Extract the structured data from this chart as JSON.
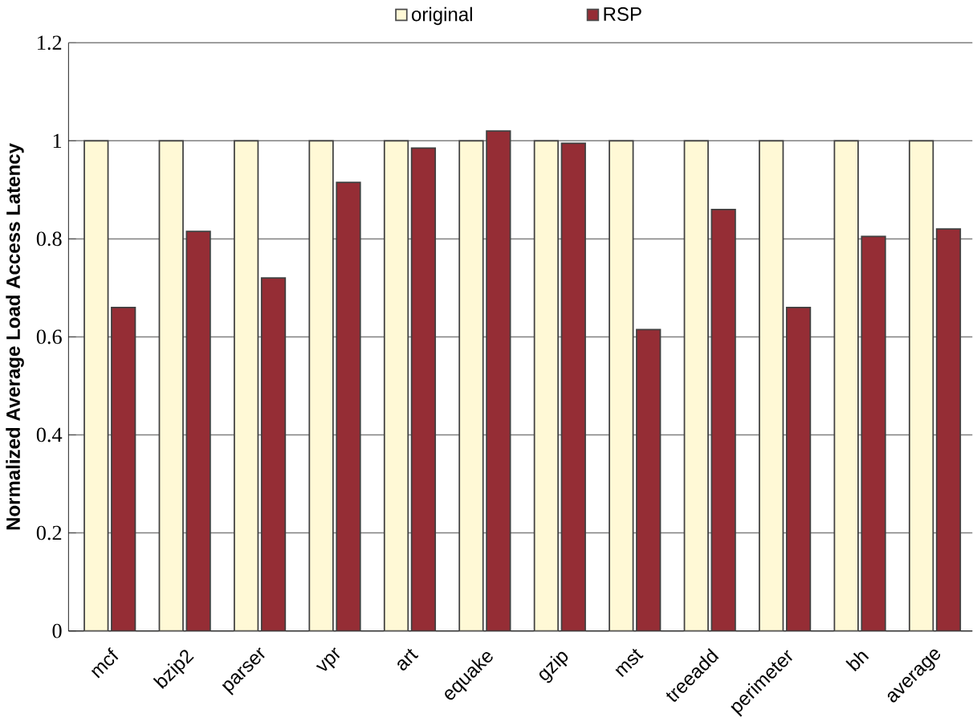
{
  "chart_data": {
    "type": "bar",
    "ylabel": "Normalized Average Load Access  Latency",
    "categories": [
      "mcf",
      "bzip2",
      "parser",
      "vpr",
      "art",
      "equake",
      "gzip",
      "mst",
      "treeadd",
      "perimeter",
      "bh",
      "average"
    ],
    "series": [
      {
        "name": "original",
        "color": "#fff9d6",
        "values": [
          1,
          1,
          1,
          1,
          1,
          1,
          1,
          1,
          1,
          1,
          1,
          1
        ]
      },
      {
        "name": "RSP",
        "color": "#952d35",
        "values": [
          0.66,
          0.815,
          0.72,
          0.915,
          0.985,
          1.02,
          0.995,
          0.615,
          0.86,
          0.66,
          0.805,
          0.82
        ]
      }
    ],
    "ylim": [
      0,
      1.2
    ],
    "yticks": [
      0,
      0.2,
      0.4,
      0.6,
      0.8,
      1,
      1.2
    ],
    "grid": "y",
    "legend": "top"
  }
}
